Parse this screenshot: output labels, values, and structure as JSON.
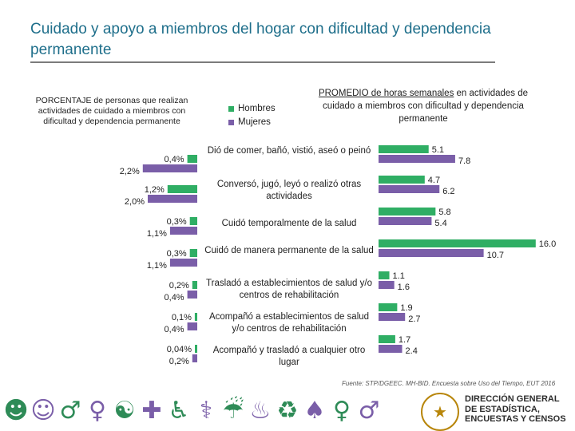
{
  "header": {
    "title": "Cuidado y apoyo a miembros del hogar con dificultad y dependencia permanente"
  },
  "left_panel_title": "PORCENTAJE de personas que realizan actividades de cuidado a miembros con dificultad y dependencia permanente",
  "right_panel_title_underlined": "PROMEDIO de horas semanales",
  "right_panel_title_rest": " en actividades de cuidado a miembros con dificultad y dependencia permanente",
  "colors": {
    "hombres": "#2fae64",
    "mujeres": "#7a5ea8"
  },
  "chart_data": {
    "type": "bar",
    "legend": [
      "Hombres",
      "Mujeres"
    ],
    "categories": [
      "Dió de comer, bañó, vistió, aseó o peinó",
      "Conversó, jugó, leyó o realizó otras actividades",
      "Cuidó temporalmente de la salud",
      "Cuidó de manera permanente de la salud",
      "Trasladó a establecimientos de salud y/o centros de rehabilitación",
      "Acompañó a establecimientos de salud y/o centros de rehabilitación",
      "Acompañó y trasladó a cualquier otro lugar"
    ],
    "percent_series": [
      {
        "name": "Hombres",
        "values": [
          0.4,
          1.2,
          0.3,
          0.3,
          0.2,
          0.1,
          0.04
        ],
        "labels": [
          "0,4%",
          "1,2%",
          "0,3%",
          "0,3%",
          "0,2%",
          "0,1%",
          "0,04%"
        ]
      },
      {
        "name": "Mujeres",
        "values": [
          2.2,
          2.0,
          1.1,
          1.1,
          0.4,
          0.4,
          0.2
        ],
        "labels": [
          "2,2%",
          "2,0%",
          "1,1%",
          "1,1%",
          "0,4%",
          "0,4%",
          "0,2%"
        ]
      }
    ],
    "hours_series": [
      {
        "name": "Hombres",
        "values": [
          5.1,
          4.7,
          5.8,
          16.0,
          1.1,
          1.9,
          1.7
        ],
        "labels": [
          "5.1",
          "4.7",
          "5.8",
          "16.0",
          "1.1",
          "1.9",
          "1.7"
        ]
      },
      {
        "name": "Mujeres",
        "values": [
          7.8,
          6.2,
          5.4,
          10.7,
          1.6,
          2.7,
          2.4
        ],
        "labels": [
          "7.8",
          "6.2",
          "5.4",
          "10.7",
          "1.6",
          "2.7",
          "2.4"
        ]
      }
    ]
  },
  "source": "Fuente: STP/DGEEC. MH-BID. Encuesta sobre Uso del Tiempo, EUT 2016",
  "footer": {
    "icons": [
      "eating-person-icon",
      "child-icon",
      "elderly-person-icon",
      "caregiver-icon",
      "running-person-icon",
      "medical-care-icon",
      "wheelchair-icon",
      "walking-aid-icon",
      "sitting-person-icon",
      "cleaning-icon",
      "laundry-icon",
      "dress-icon",
      "woman-icon",
      "man-icon"
    ],
    "org_lines": [
      "DIRECCIÓN GENERAL",
      "DE ESTADÍSTICA,",
      "ENCUESTAS Y CENSOS"
    ]
  }
}
